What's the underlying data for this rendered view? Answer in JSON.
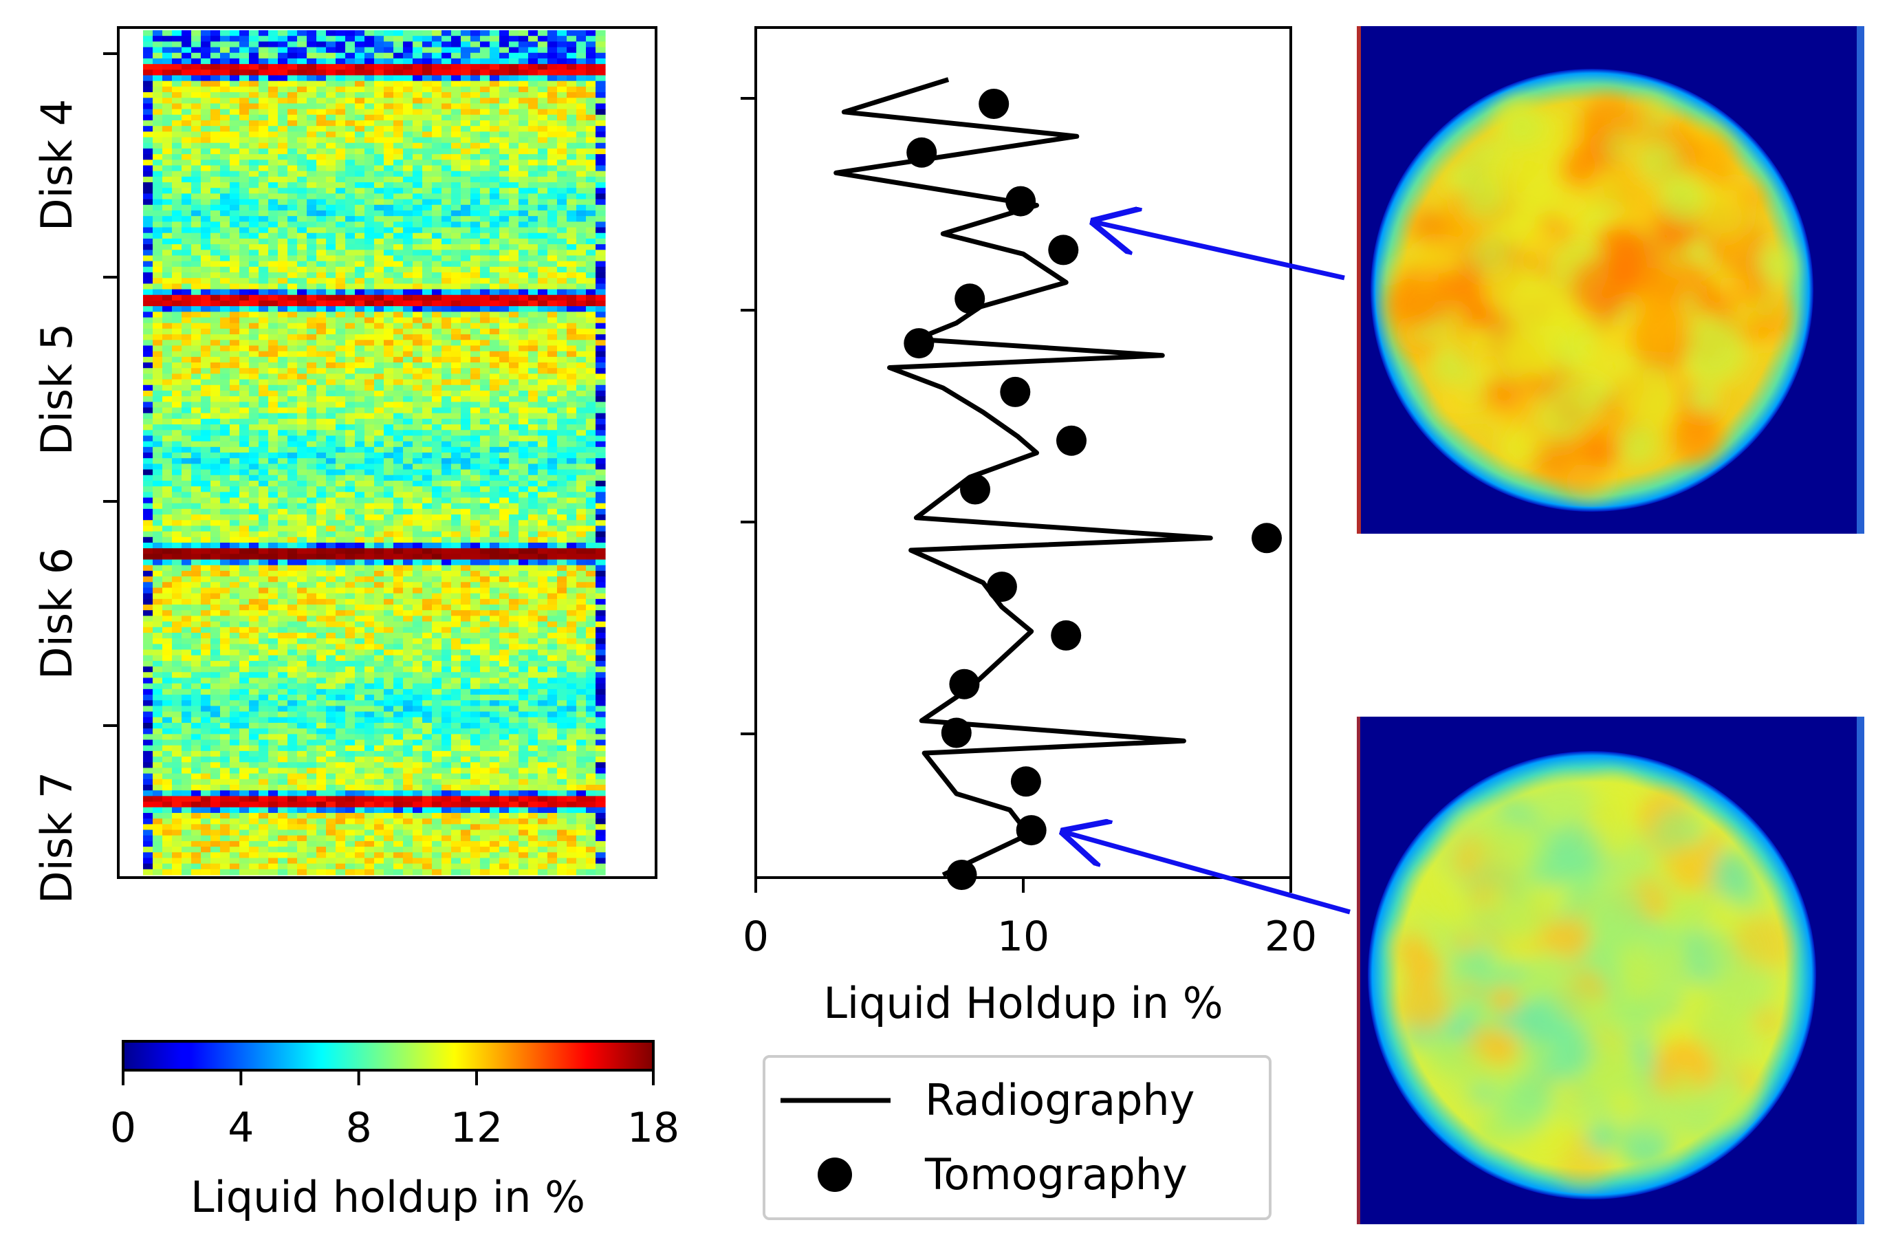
{
  "chart_data": [
    {
      "type": "heatmap",
      "title": "",
      "y_labels": [
        "Disk 4",
        "Disk 5",
        "Disk 6",
        "Disk 7"
      ],
      "colormap": "jet",
      "value_range": [
        0,
        18
      ],
      "colorbar": {
        "label": "Liquid holdup in %",
        "ticks": [
          0,
          4,
          8,
          12,
          18
        ]
      },
      "rows_description": "per-row mean holdup approx 8-12 %, red bands (~16 %) at disk boundaries",
      "band_value": 16,
      "typical_range": [
        6,
        12
      ]
    },
    {
      "type": "line",
      "xlabel": "Liquid Holdup in %",
      "ylabel": "",
      "xlim": [
        0,
        20
      ],
      "xticks": [
        0,
        10,
        20
      ],
      "series": [
        {
          "name": "Radiography",
          "style": "line",
          "color": "#000000",
          "x": [
            7.2,
            3.3,
            12.0,
            3.0,
            10.5,
            7.0,
            10.0,
            11.6,
            8.4,
            7.5,
            6.0,
            15.2,
            5.0,
            7.0,
            8.5,
            9.8,
            10.5,
            8.0,
            6.0,
            17.0,
            5.8,
            8.5,
            9.2,
            10.3,
            8.0,
            6.2,
            16.0,
            6.3,
            7.5,
            9.5,
            10.2,
            7.0
          ],
          "y": [
            0.02,
            0.06,
            0.09,
            0.135,
            0.175,
            0.21,
            0.235,
            0.27,
            0.3,
            0.32,
            0.34,
            0.36,
            0.375,
            0.4,
            0.43,
            0.46,
            0.48,
            0.51,
            0.56,
            0.585,
            0.6,
            0.64,
            0.67,
            0.7,
            0.77,
            0.81,
            0.835,
            0.85,
            0.9,
            0.92,
            0.95,
            1.0
          ]
        },
        {
          "name": "Tomography",
          "style": "marker",
          "color": "#000000",
          "x": [
            8.9,
            6.2,
            9.9,
            11.5,
            8.0,
            6.1,
            9.7,
            11.8,
            8.2,
            19.1,
            9.2,
            11.6,
            7.8,
            7.5,
            10.1,
            10.3,
            7.7
          ],
          "y": [
            0.05,
            0.11,
            0.17,
            0.23,
            0.29,
            0.345,
            0.405,
            0.465,
            0.525,
            0.585,
            0.645,
            0.705,
            0.765,
            0.825,
            0.885,
            0.945,
            1.0
          ]
        }
      ],
      "legend": {
        "position": "bottom",
        "entries": [
          "Radiography",
          "Tomography"
        ]
      }
    },
    {
      "type": "heatmap",
      "description": "tomography cross-section upper",
      "colormap": "jet"
    },
    {
      "type": "heatmap",
      "description": "tomography cross-section lower",
      "colormap": "jet"
    }
  ],
  "colors": {
    "arrow": "#1010ee",
    "jet_low": "#00008f",
    "jet_high": "#7f0000"
  }
}
